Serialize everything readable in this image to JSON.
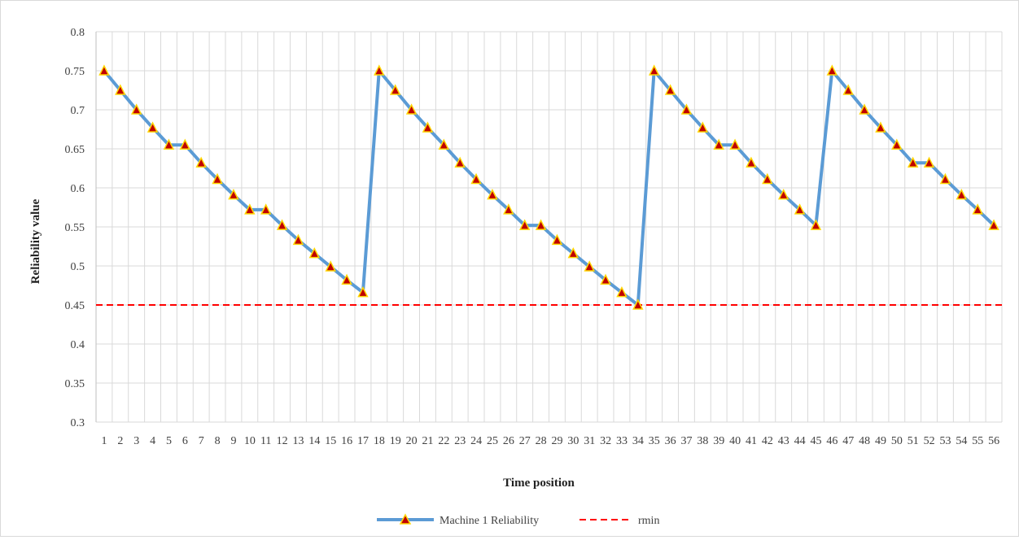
{
  "chart_data": {
    "type": "line",
    "xlabel": "Time position",
    "ylabel": "Reliability value",
    "ylim": [
      0.3,
      0.8
    ],
    "yticks": [
      0.3,
      0.35,
      0.4,
      0.45,
      0.5,
      0.55,
      0.6,
      0.65,
      0.7,
      0.75,
      0.8
    ],
    "ytick_labels": [
      "0.3",
      "0.35",
      "0.4",
      "0.45",
      "0.5",
      "0.55",
      "0.6",
      "0.65",
      "0.7",
      "0.75",
      "0.8"
    ],
    "categories": [
      "1",
      "2",
      "3",
      "4",
      "5",
      "6",
      "7",
      "8",
      "9",
      "10",
      "11",
      "12",
      "13",
      "14",
      "15",
      "16",
      "17",
      "18",
      "19",
      "20",
      "21",
      "22",
      "23",
      "24",
      "25",
      "26",
      "27",
      "28",
      "29",
      "30",
      "31",
      "32",
      "33",
      "34",
      "35",
      "36",
      "37",
      "38",
      "39",
      "40",
      "41",
      "42",
      "43",
      "44",
      "45",
      "46",
      "47",
      "48",
      "49",
      "50",
      "51",
      "52",
      "53",
      "54",
      "55",
      "56"
    ],
    "grid": true,
    "legend_position": "bottom",
    "series": [
      {
        "name": "Machine 1 Reliability",
        "color": "#5b9bd5",
        "marker": "triangle",
        "marker_fill": "#c00000",
        "marker_edge": "#ffd700",
        "values": [
          0.75,
          0.725,
          0.7,
          0.677,
          0.655,
          0.655,
          0.632,
          0.611,
          0.591,
          0.572,
          0.572,
          0.552,
          0.533,
          0.516,
          0.499,
          0.482,
          0.466,
          0.75,
          0.725,
          0.7,
          0.677,
          0.655,
          0.632,
          0.611,
          0.591,
          0.572,
          0.552,
          0.552,
          0.533,
          0.516,
          0.499,
          0.482,
          0.466,
          0.45,
          0.75,
          0.725,
          0.7,
          0.677,
          0.655,
          0.655,
          0.632,
          0.611,
          0.591,
          0.572,
          0.552,
          0.75,
          0.725,
          0.7,
          0.677,
          0.655,
          0.632,
          0.632,
          0.611,
          0.591,
          0.572,
          0.552
        ]
      },
      {
        "name": "rmin",
        "color": "#ff0000",
        "style": "dashed",
        "value": 0.45
      }
    ]
  }
}
